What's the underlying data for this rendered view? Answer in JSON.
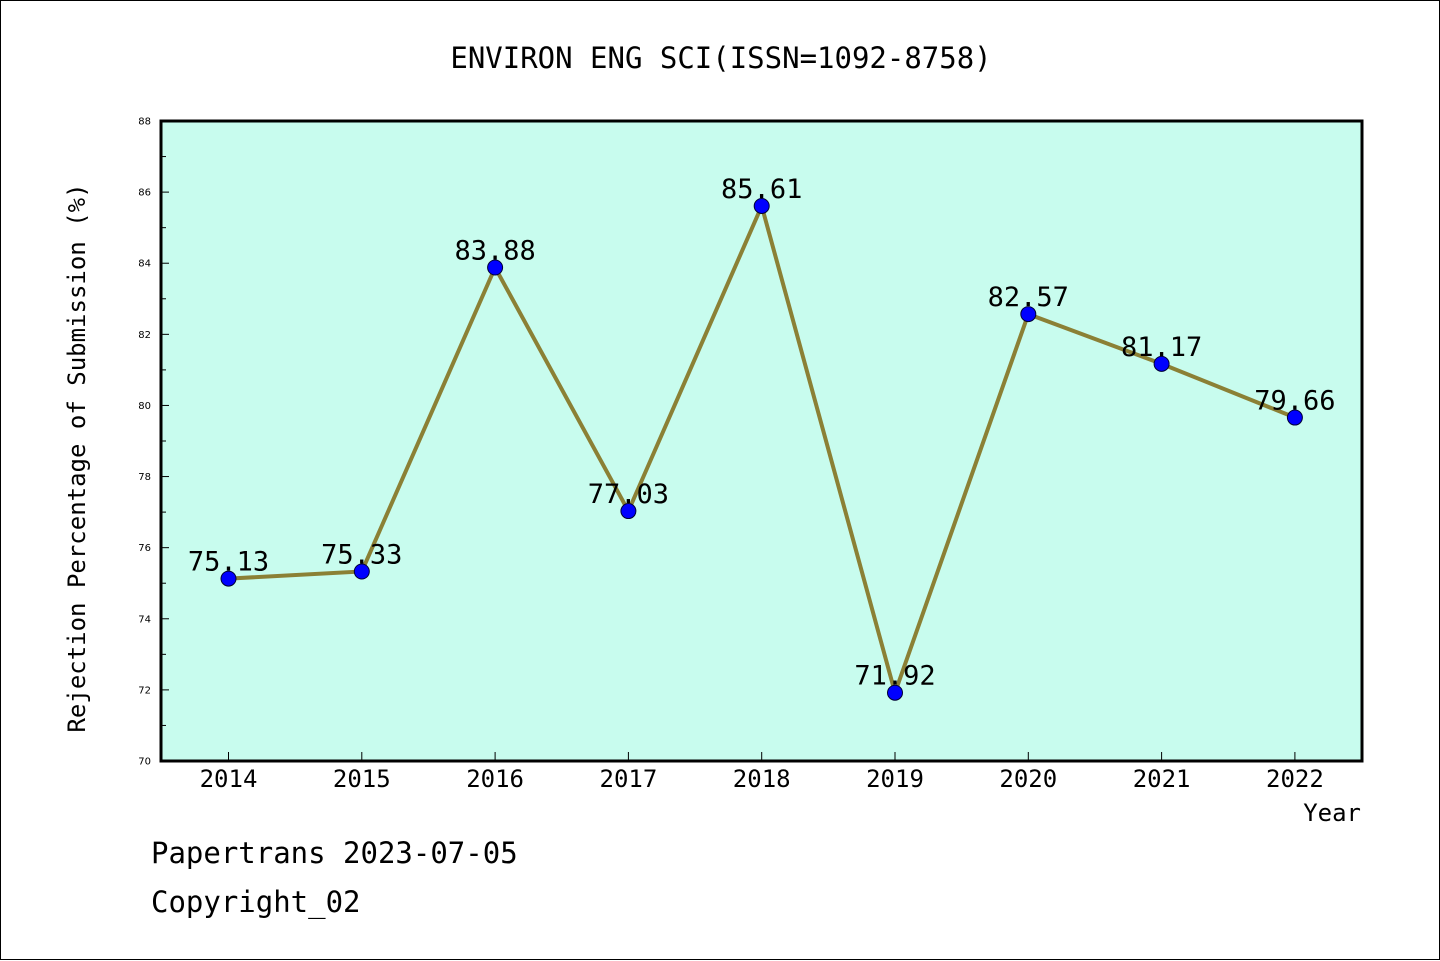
{
  "chart_data": {
    "type": "line",
    "title": "ENVIRON ENG SCI(ISSN=1092-8758)",
    "xlabel": "Year",
    "ylabel": "Rejection Percentage of Submission (%)",
    "categories": [
      "2014",
      "2015",
      "2016",
      "2017",
      "2018",
      "2019",
      "2020",
      "2021",
      "2022"
    ],
    "values": [
      75.13,
      75.33,
      83.88,
      77.03,
      85.61,
      71.92,
      82.57,
      81.17,
      79.66
    ],
    "data_labels": [
      "75.13",
      "75.33",
      "83.88",
      "77.03",
      "85.61",
      "71.92",
      "82.57",
      "81.17",
      "79.66"
    ],
    "ylim": [
      70,
      88
    ],
    "yticks": [
      "70",
      "72",
      "74",
      "76",
      "78",
      "80",
      "82",
      "84",
      "86",
      "88"
    ],
    "grid": false,
    "legend": "none",
    "colors": {
      "plot_background": "#c8fcee",
      "line": "#8b8035",
      "marker": "#0000ff"
    }
  },
  "footer": {
    "source": "Papertrans 2023-07-05",
    "copyright": "Copyright_02"
  }
}
